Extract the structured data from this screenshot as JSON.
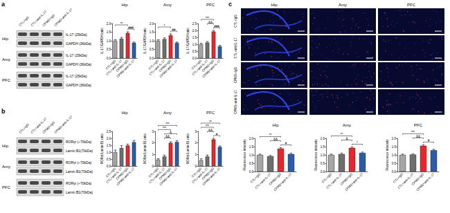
{
  "chart_data": [
    {
      "type": "bar",
      "title": "Hip",
      "ylabel": "IL-17/GAPDH ratio",
      "categories": [
        "CTL+IgG",
        "CTL+anti-IL-17",
        "CPMS+IgG",
        "CPMS+anti-IL-17"
      ],
      "values": [
        1.0,
        1.12,
        1.45,
        0.88
      ],
      "errors": [
        0.06,
        0.08,
        0.07,
        0.05
      ],
      "colors": [
        "#a6a6a6",
        "#6e6e6e",
        "#e8262b",
        "#2a5caa"
      ],
      "ylim": [
        0,
        2
      ],
      "yticks": [
        {
          "value": 0,
          "label": "0.0"
        },
        {
          "value": 0.5,
          "label": "0.5"
        },
        {
          "value": 1,
          "label": "1.0"
        },
        {
          "value": 1.5,
          "label": "1.5"
        },
        {
          "value": 2,
          "label": "2.0"
        }
      ],
      "grid": false,
      "annotations": [
        {
          "from": 2,
          "to": 3,
          "label": "###"
        },
        {
          "from": 0,
          "to": 2,
          "label": "**"
        }
      ]
    },
    {
      "type": "bar",
      "title": "Amy",
      "ylabel": "IL-17/GAPDH ratio",
      "categories": [
        "CTL+IgG",
        "CTL+anti-IL-17",
        "CPMS+IgG",
        "CPMS+anti-IL-17"
      ],
      "values": [
        1.0,
        1.1,
        1.32,
        0.88
      ],
      "errors": [
        0.06,
        0.07,
        0.08,
        0.05
      ],
      "colors": [
        "#a6a6a6",
        "#6e6e6e",
        "#e8262b",
        "#2a5caa"
      ],
      "ylim": [
        0,
        2
      ],
      "yticks": [
        {
          "value": 0,
          "label": "0.0"
        },
        {
          "value": 0.5,
          "label": "0.5"
        },
        {
          "value": 1,
          "label": "1.0"
        },
        {
          "value": 1.5,
          "label": "1.5"
        },
        {
          "value": 2,
          "label": "2.0"
        }
      ],
      "grid": false,
      "annotations": [
        {
          "from": 2,
          "to": 3,
          "label": "##"
        },
        {
          "from": 0,
          "to": 2,
          "label": "*"
        }
      ]
    },
    {
      "type": "bar",
      "title": "PFC",
      "ylabel": "IL-17/GAPDH ratio",
      "categories": [
        "CTL+IgG",
        "CTL+anti-IL-17",
        "CPMS+IgG",
        "CPMS+anti-IL-17"
      ],
      "values": [
        1.0,
        1.12,
        1.92,
        0.85
      ],
      "errors": [
        0.07,
        0.08,
        0.08,
        0.07
      ],
      "colors": [
        "#a6a6a6",
        "#6e6e6e",
        "#e8262b",
        "#2a5caa"
      ],
      "ylim": [
        0,
        2.5
      ],
      "yticks": [
        {
          "value": 0,
          "label": "0.0"
        },
        {
          "value": 0.5,
          "label": "0.5"
        },
        {
          "value": 1,
          "label": "1.0"
        },
        {
          "value": 1.5,
          "label": "1.5"
        },
        {
          "value": 2,
          "label": "2.0"
        },
        {
          "value": 2.5,
          "label": "2.5"
        }
      ],
      "grid": false,
      "annotations": [
        {
          "from": 2,
          "to": 3,
          "label": "###"
        },
        {
          "from": 1,
          "to": 2,
          "label": "&&"
        },
        {
          "from": 0,
          "to": 2,
          "label": "***"
        }
      ]
    },
    {
      "type": "bar",
      "title": "Hip",
      "ylabel": "RORγt/Lamin B1 ratio",
      "categories": [
        "CTL+IgG",
        "CTL+anti-IL-17",
        "CPMS+IgG",
        "CPMS+anti-IL-17"
      ],
      "values": [
        1.0,
        1.3,
        1.48,
        1.72
      ],
      "errors": [
        0.15,
        0.17,
        0.1,
        0.12
      ],
      "colors": [
        "#a6a6a6",
        "#6e6e6e",
        "#e8262b",
        "#2a5caa"
      ],
      "ylim": [
        0,
        2.5
      ],
      "yticks": [
        {
          "value": 0,
          "label": "0.0"
        },
        {
          "value": 0.5,
          "label": "0.5"
        },
        {
          "value": 1,
          "label": "1.0"
        },
        {
          "value": 1.5,
          "label": "1.5"
        },
        {
          "value": 2,
          "label": "2.0"
        },
        {
          "value": 2.5,
          "label": "2.5"
        }
      ],
      "grid": false,
      "annotations": []
    },
    {
      "type": "bar",
      "title": "Amy",
      "ylabel": "RORγt/Lamin B1 ratio",
      "categories": [
        "CTL+IgG",
        "CTL+anti-IL-17",
        "CPMS+IgG",
        "CPMS+anti-IL-17"
      ],
      "values": [
        0.55,
        0.82,
        2.0,
        2.08
      ],
      "errors": [
        0.08,
        0.12,
        0.1,
        0.12
      ],
      "colors": [
        "#a6a6a6",
        "#6e6e6e",
        "#e8262b",
        "#2a5caa"
      ],
      "ylim": [
        0,
        3
      ],
      "yticks": [
        0,
        1,
        2,
        3
      ],
      "grid": false,
      "annotations": [
        {
          "from": 1,
          "to": 2,
          "label": "&&"
        },
        {
          "from": 1,
          "to": 3,
          "label": "&"
        },
        {
          "from": 0,
          "to": 2,
          "label": "***"
        },
        {
          "from": 0,
          "to": 3,
          "label": "***"
        }
      ]
    },
    {
      "type": "bar",
      "title": "PFC",
      "ylabel": "RORγt/Lamin B1 ratio",
      "categories": [
        "CTL+IgG",
        "CTL+anti-IL-17",
        "CPMS+IgG",
        "CPMS+anti-IL-17"
      ],
      "values": [
        0.5,
        0.82,
        2.3,
        1.65
      ],
      "errors": [
        0.12,
        0.13,
        0.1,
        0.09
      ],
      "colors": [
        "#a6a6a6",
        "#6e6e6e",
        "#e8262b",
        "#2a5caa"
      ],
      "ylim": [
        0,
        3
      ],
      "yticks": [
        0,
        1,
        2,
        3
      ],
      "grid": false,
      "annotations": [
        {
          "from": 2,
          "to": 3,
          "label": "#"
        },
        {
          "from": 1,
          "to": 2,
          "label": "&&"
        },
        {
          "from": 0,
          "to": 2,
          "label": "***"
        },
        {
          "from": 0,
          "to": 3,
          "label": "**"
        }
      ]
    },
    {
      "type": "bar",
      "title": "Hip",
      "ylabel": "Fluorescence intensity",
      "categories": [
        "CTL+IgG",
        "CTL+anti-IL-17",
        "CPMS+IgG",
        "CPMS+anti-IL-17"
      ],
      "values": [
        1.0,
        0.92,
        1.38,
        1.05
      ],
      "errors": [
        0.05,
        0.05,
        0.06,
        0.06
      ],
      "colors": [
        "#a6a6a6",
        "#6e6e6e",
        "#e8262b",
        "#2a5caa"
      ],
      "ylim": [
        0,
        2
      ],
      "yticks": [
        {
          "value": 0,
          "label": "0.0"
        },
        {
          "value": 0.5,
          "label": "0.5"
        },
        {
          "value": 1,
          "label": "1.0"
        },
        {
          "value": 1.5,
          "label": "1.5"
        },
        {
          "value": 2,
          "label": "2.0"
        }
      ],
      "grid": false,
      "annotations": [
        {
          "from": 2,
          "to": 3,
          "label": "#"
        },
        {
          "from": 1,
          "to": 2,
          "label": "&&"
        },
        {
          "from": 0,
          "to": 2,
          "label": "**"
        }
      ]
    },
    {
      "type": "bar",
      "title": "Amy",
      "ylabel": "Fluorescence intensity",
      "categories": [
        "CTL+IgG",
        "CTL+anti-IL-17",
        "CPMS+IgG",
        "CPMS+anti-IL-17"
      ],
      "values": [
        1.0,
        1.05,
        1.42,
        1.12
      ],
      "errors": [
        0.05,
        0.06,
        0.06,
        0.05
      ],
      "colors": [
        "#a6a6a6",
        "#6e6e6e",
        "#e8262b",
        "#2a5caa"
      ],
      "ylim": [
        0,
        2
      ],
      "yticks": [
        {
          "value": 0,
          "label": "0.0"
        },
        {
          "value": 0.5,
          "label": "0.5"
        },
        {
          "value": 1,
          "label": "1.0"
        },
        {
          "value": 1.5,
          "label": "1.5"
        },
        {
          "value": 2,
          "label": "2.0"
        }
      ],
      "grid": false,
      "annotations": [
        {
          "from": 2,
          "to": 3,
          "label": "*"
        },
        {
          "from": 1,
          "to": 2,
          "label": "&"
        },
        {
          "from": 0,
          "to": 2,
          "label": "**"
        }
      ]
    },
    {
      "type": "bar",
      "title": "PFC",
      "ylabel": "Fluorescence intensity",
      "categories": [
        "CTL+IgG",
        "CTL+anti-IL-17",
        "CPMS+IgG",
        "CPMS+anti-IL-17"
      ],
      "values": [
        1.0,
        1.02,
        1.55,
        1.28
      ],
      "errors": [
        0.05,
        0.05,
        0.06,
        0.06
      ],
      "colors": [
        "#a6a6a6",
        "#6e6e6e",
        "#e8262b",
        "#2a5caa"
      ],
      "ylim": [
        0,
        2
      ],
      "yticks": [
        {
          "value": 0,
          "label": "0.0"
        },
        {
          "value": 0.5,
          "label": "0.5"
        },
        {
          "value": 1,
          "label": "1.0"
        },
        {
          "value": 1.5,
          "label": "1.5"
        },
        {
          "value": 2,
          "label": "2.0"
        }
      ],
      "grid": false,
      "annotations": [
        {
          "from": 2,
          "to": 3,
          "label": "#"
        },
        {
          "from": 1,
          "to": 2,
          "label": "&&"
        },
        {
          "from": 0,
          "to": 2,
          "label": "***"
        }
      ]
    }
  ],
  "figure": {
    "panel_labels": [
      "a",
      "b",
      "c"
    ],
    "blots": [
      {
        "lanes": [
          "CTL+IgG",
          "CTL+anti-IL-17",
          "CPMS+IgG",
          "CPMS+anti-IL-17"
        ],
        "rows": [
          {
            "region": "Hip",
            "bands": [
              "IL-17 (25kDa)",
              "GAPDH (36kDa)"
            ]
          },
          {
            "region": "Amy",
            "bands": [
              "IL-17 (25kDa)",
              "GAPDH (36kDa)"
            ]
          },
          {
            "region": "PFC",
            "bands": [
              "IL-17 (25kDa)",
              "GAPDH (36kDa)"
            ]
          }
        ]
      },
      {
        "lanes": [
          "CTL+IgG",
          "CTL+anti-IL-17",
          "CPMS+IgG",
          "CPMS+anti-IL-17"
        ],
        "rows": [
          {
            "region": "Hip",
            "bands": [
              "RORγt (~70kDa)",
              "Lamin B1(70kDa)"
            ]
          },
          {
            "region": "Amy",
            "bands": [
              "RORγt (~70kDa)",
              "Lamin B1(70kDa)"
            ]
          },
          {
            "region": "PFC",
            "bands": [
              "RORγt (~70kDa)",
              "Lamin B1(70kDa)"
            ]
          }
        ]
      }
    ],
    "images": {
      "columns": [
        "Hip",
        "Amy",
        "PFC"
      ],
      "rows": [
        "CTL+IgG",
        "CTL+anti-IL-17",
        "CPMS+IgG",
        "CPMS+anti-IL-17"
      ]
    }
  }
}
